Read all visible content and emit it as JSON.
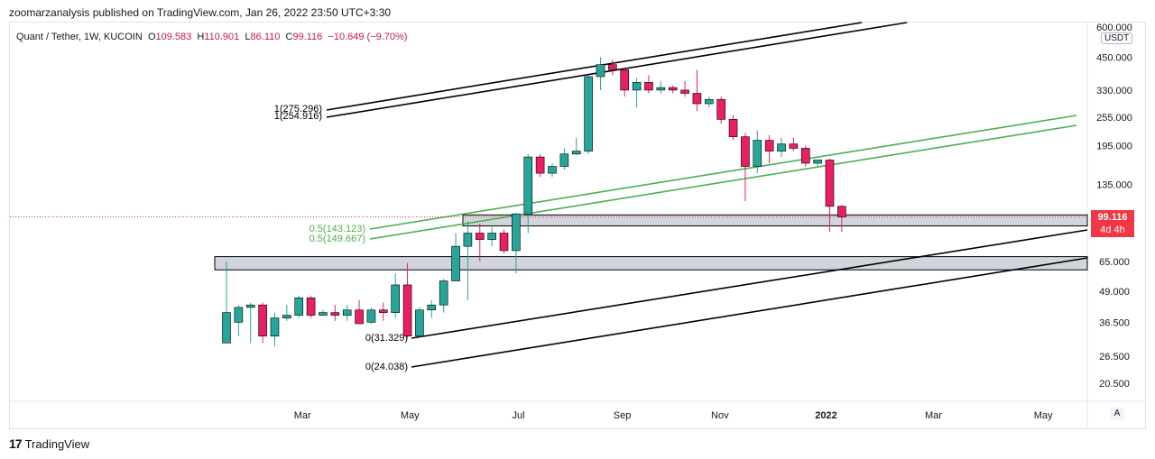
{
  "header": {
    "published": "zoomarzanalysis published on TradingView.com, Jan 26, 2022 23:50 UTC+3:30"
  },
  "legend": {
    "symbol": "Quant / Tether, 1W, KUCOIN",
    "open_label": "O",
    "open": "109.583",
    "high_label": "H",
    "high": "110.901",
    "low_label": "L",
    "low": "86.110",
    "close_label": "C",
    "close": "99.116",
    "change": "−10.649 (−9.70%)"
  },
  "price_tag": {
    "price": "99.116",
    "countdown": "4d 4h"
  },
  "currency": "USDT",
  "scale_button": "A",
  "footer": {
    "brand_mark": "17",
    "brand": "TradingView"
  },
  "colors": {
    "up": "#26a69a",
    "down": "#e91e63",
    "fib_black": "#000000",
    "fib_green": "#4caf50",
    "price_line": "#f23645",
    "zone_fill": "#d1d4dc"
  },
  "chart_data": {
    "type": "candlestick",
    "y_scale": "log",
    "ylim": [
      18,
      600
    ],
    "y_ticks": [
      "600.000",
      "450.000",
      "330.000",
      "255.000",
      "195.000",
      "135.000",
      "65.000",
      "49.000",
      "36.500",
      "26.500",
      "20.500"
    ],
    "x_ticks": [
      "Mar",
      "May",
      "Jul",
      "Sep",
      "Nov",
      "2022",
      "Mar",
      "May"
    ],
    "x_tick_positions_weeks": [
      6.3,
      15.2,
      24.2,
      32.8,
      40.9,
      49.7,
      58.6,
      67.7
    ],
    "candles": [
      {
        "o": 30,
        "h": 65,
        "l": 30,
        "c": 40
      },
      {
        "o": 36.5,
        "h": 43,
        "l": 32,
        "c": 42
      },
      {
        "o": 42,
        "h": 44,
        "l": 30,
        "c": 43
      },
      {
        "o": 43,
        "h": 44,
        "l": 30,
        "c": 32
      },
      {
        "o": 32,
        "h": 40,
        "l": 29,
        "c": 38
      },
      {
        "o": 38,
        "h": 43,
        "l": 37,
        "c": 39
      },
      {
        "o": 39,
        "h": 47,
        "l": 38,
        "c": 46
      },
      {
        "o": 46,
        "h": 47,
        "l": 38,
        "c": 39
      },
      {
        "o": 39,
        "h": 41,
        "l": 39,
        "c": 40
      },
      {
        "o": 40,
        "h": 43,
        "l": 37,
        "c": 39
      },
      {
        "o": 39,
        "h": 43,
        "l": 37,
        "c": 41
      },
      {
        "o": 41,
        "h": 45,
        "l": 36,
        "c": 36
      },
      {
        "o": 36.5,
        "h": 42,
        "l": 36,
        "c": 41
      },
      {
        "o": 41,
        "h": 44,
        "l": 37,
        "c": 40
      },
      {
        "o": 40,
        "h": 58,
        "l": 38,
        "c": 52
      },
      {
        "o": 52,
        "h": 64,
        "l": 31.3,
        "c": 32
      },
      {
        "o": 32,
        "h": 42,
        "l": 31.5,
        "c": 41
      },
      {
        "o": 41,
        "h": 45,
        "l": 38,
        "c": 43
      },
      {
        "o": 43,
        "h": 55,
        "l": 40,
        "c": 54
      },
      {
        "o": 54,
        "h": 85,
        "l": 54,
        "c": 75
      },
      {
        "o": 75,
        "h": 95,
        "l": 45,
        "c": 85
      },
      {
        "o": 85,
        "h": 93,
        "l": 65,
        "c": 80
      },
      {
        "o": 80,
        "h": 90,
        "l": 75,
        "c": 85
      },
      {
        "o": 85,
        "h": 88,
        "l": 70,
        "c": 72
      },
      {
        "o": 72,
        "h": 103,
        "l": 58,
        "c": 102
      },
      {
        "o": 102,
        "h": 180,
        "l": 85,
        "c": 175
      },
      {
        "o": 175,
        "h": 180,
        "l": 145,
        "c": 150
      },
      {
        "o": 150,
        "h": 165,
        "l": 145,
        "c": 160
      },
      {
        "o": 160,
        "h": 190,
        "l": 155,
        "c": 180
      },
      {
        "o": 180,
        "h": 210,
        "l": 178,
        "c": 185
      },
      {
        "o": 185,
        "h": 380,
        "l": 180,
        "c": 375
      },
      {
        "o": 375,
        "h": 450,
        "l": 330,
        "c": 420
      },
      {
        "o": 420,
        "h": 440,
        "l": 380,
        "c": 400
      },
      {
        "o": 400,
        "h": 410,
        "l": 310,
        "c": 330
      },
      {
        "o": 330,
        "h": 370,
        "l": 280,
        "c": 355
      },
      {
        "o": 355,
        "h": 380,
        "l": 320,
        "c": 330
      },
      {
        "o": 330,
        "h": 360,
        "l": 320,
        "c": 338
      },
      {
        "o": 338,
        "h": 345,
        "l": 320,
        "c": 330
      },
      {
        "o": 330,
        "h": 360,
        "l": 310,
        "c": 320
      },
      {
        "o": 320,
        "h": 400,
        "l": 270,
        "c": 290
      },
      {
        "o": 290,
        "h": 310,
        "l": 280,
        "c": 302
      },
      {
        "o": 302,
        "h": 310,
        "l": 240,
        "c": 250
      },
      {
        "o": 250,
        "h": 260,
        "l": 205,
        "c": 212
      },
      {
        "o": 212,
        "h": 220,
        "l": 115,
        "c": 160
      },
      {
        "o": 160,
        "h": 225,
        "l": 150,
        "c": 205
      },
      {
        "o": 205,
        "h": 215,
        "l": 165,
        "c": 185
      },
      {
        "o": 185,
        "h": 210,
        "l": 175,
        "c": 198
      },
      {
        "o": 198,
        "h": 210,
        "l": 185,
        "c": 190
      },
      {
        "o": 190,
        "h": 195,
        "l": 160,
        "c": 165
      },
      {
        "o": 165,
        "h": 170,
        "l": 160,
        "c": 170
      },
      {
        "o": 170,
        "h": 172,
        "l": 86,
        "c": 109.6
      },
      {
        "o": 109.583,
        "h": 110.901,
        "l": 86.11,
        "c": 99.116
      }
    ],
    "fib_levels": [
      {
        "label": "1(275.296)",
        "color": "#000000"
      },
      {
        "label": "1(254.916)",
        "color": "#000000"
      },
      {
        "label": "0.5(143.123)",
        "color": "#4caf50"
      },
      {
        "label": "0.5(149.667)",
        "color": "#4caf50"
      },
      {
        "label": "0(31.329)",
        "color": "#000000"
      },
      {
        "label": "0(24.038)",
        "color": "#000000"
      }
    ],
    "zones": [
      {
        "low": 91,
        "high": 101
      },
      {
        "low": 60,
        "high": 68
      }
    ],
    "last_price": 99.116
  }
}
